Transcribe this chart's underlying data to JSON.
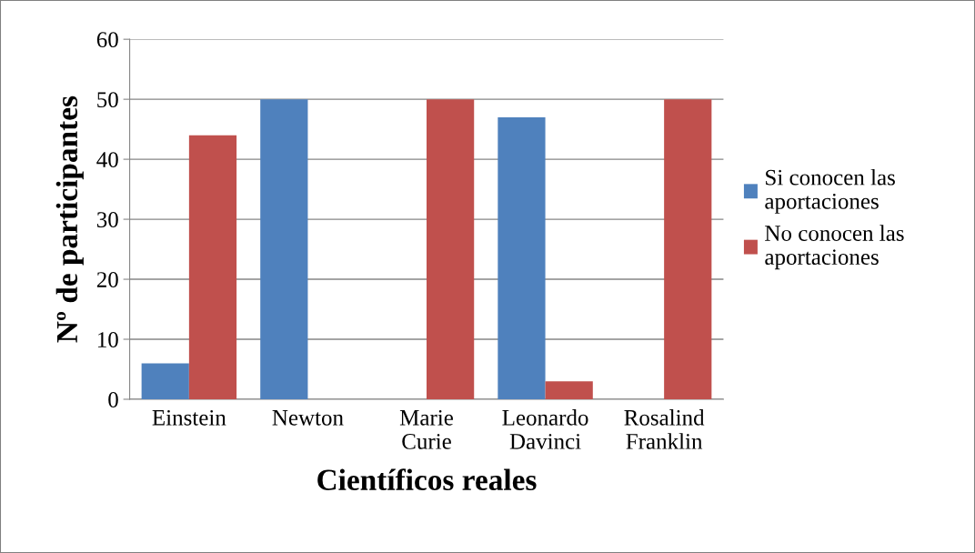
{
  "chart_data": {
    "type": "bar",
    "xlabel": "Científicos reales",
    "ylabel": "Nº de participantes",
    "categories": [
      "Einstein",
      "Newton",
      "Marie\nCurie",
      "Leonardo\nDavinci",
      "Rosalind\nFranklin"
    ],
    "series": [
      {
        "name": "Si conocen las\naportaciones",
        "color": "#4f81bd",
        "values": [
          6,
          50,
          0,
          47,
          0
        ]
      },
      {
        "name": "No conocen las\naportaciones",
        "color": "#c0504d",
        "values": [
          44,
          0,
          50,
          3,
          50
        ]
      }
    ],
    "ylim": [
      0,
      60
    ],
    "yticks": [
      0,
      10,
      20,
      30,
      40,
      50,
      60
    ],
    "grid": "y",
    "legend": "right"
  }
}
